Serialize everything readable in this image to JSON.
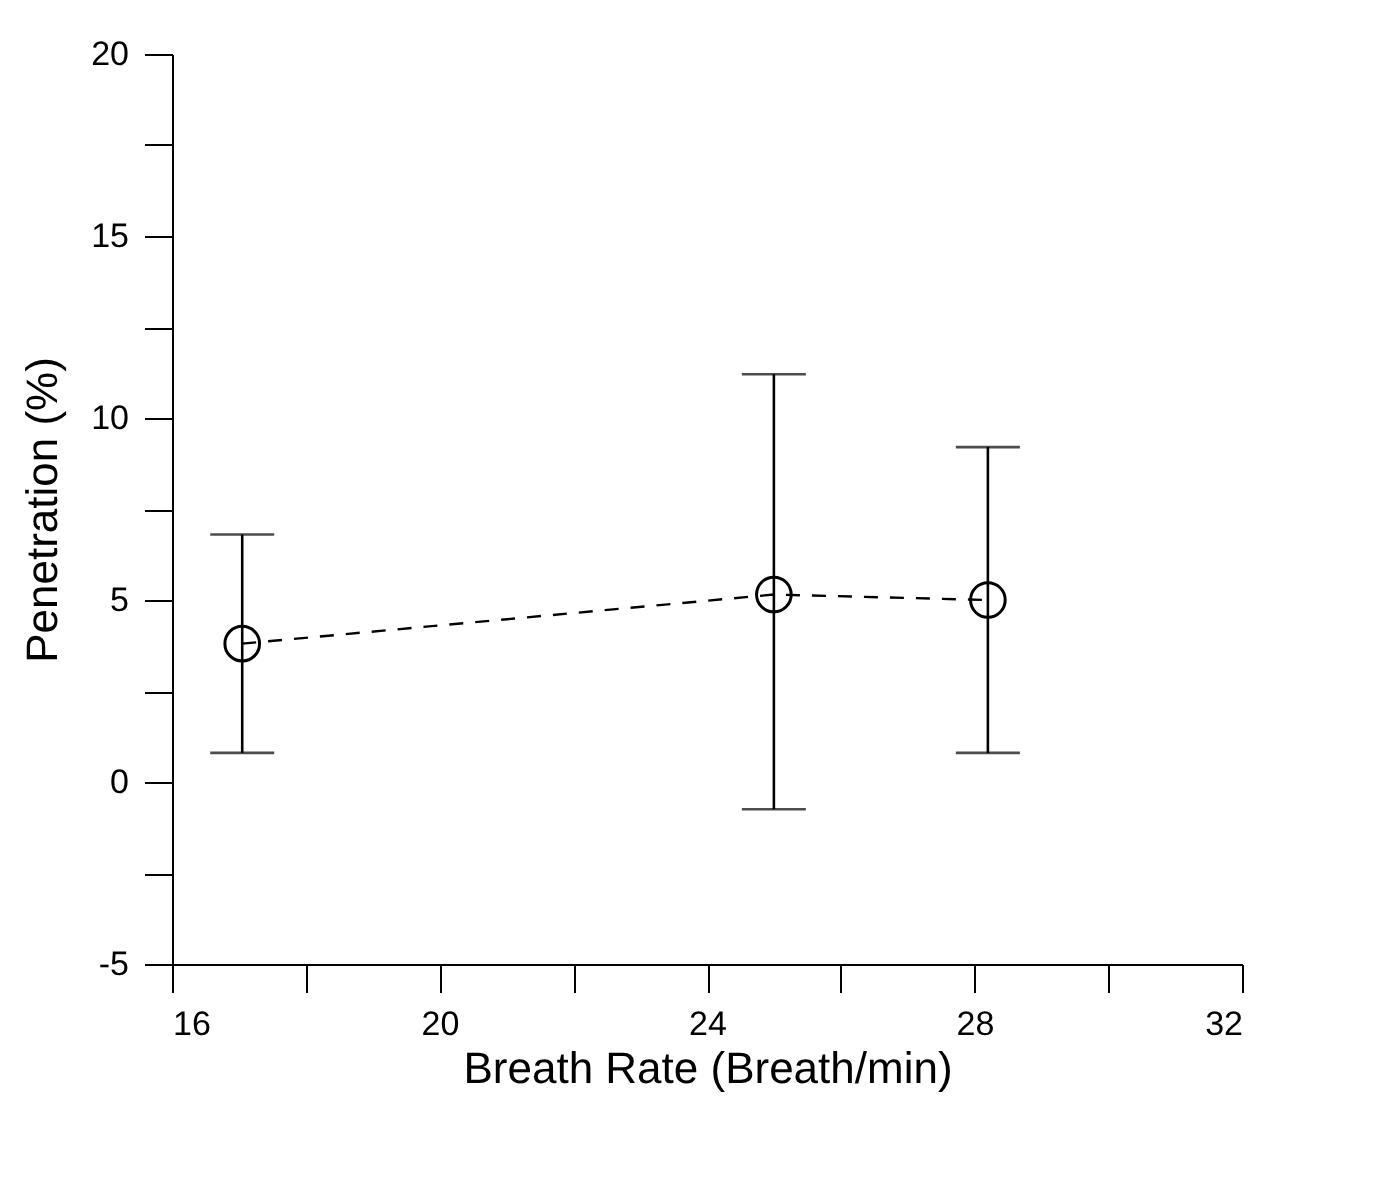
{
  "chart_data": {
    "type": "line",
    "xlabel": "Breath Rate (Breath/min)",
    "ylabel": "Penetration (%)",
    "x": [
      17.05,
      25.0,
      28.2
    ],
    "series": [
      {
        "color": "#000000",
        "values": [
          3.8,
          5.15,
          5.0
        ],
        "errors": [
          [
            0.8,
            6.8
          ],
          [
            -0.75,
            11.2
          ],
          [
            0.8,
            9.2
          ]
        ]
      }
    ],
    "marker": "circle",
    "line_style": "dashed",
    "grid": false,
    "xlim": [
      16,
      32
    ],
    "xticks": [
      16,
      {
        "value": 18,
        "label": null
      },
      20,
      {
        "value": 22,
        "label": null
      },
      24,
      {
        "value": 26,
        "label": null
      },
      28,
      {
        "value": 30,
        "label": null
      },
      32
    ],
    "ylim": [
      -5,
      20
    ],
    "yticks": [
      -5,
      {
        "value": -2.5,
        "label": null
      },
      0,
      {
        "value": 2.5,
        "label": null
      },
      5,
      {
        "value": 7.5,
        "label": null
      },
      10,
      {
        "value": 12.5,
        "label": null
      },
      15,
      {
        "value": 17.5,
        "label": null
      },
      20
    ]
  }
}
